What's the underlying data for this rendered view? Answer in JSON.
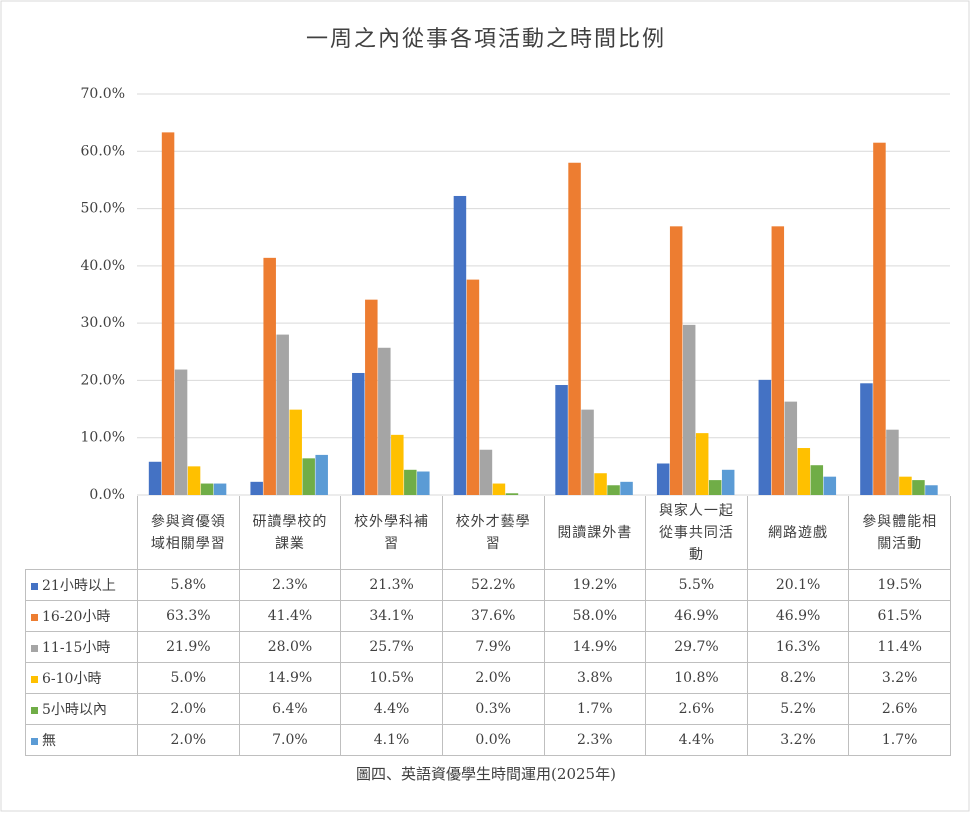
{
  "chart_data": {
    "type": "bar",
    "title": "一周之內從事各項活動之時間比例",
    "caption": "圖四、英語資優學生時間運用(2025年)",
    "categories": [
      "參與資優領域相關學習",
      "研讀學校的課業",
      "校外學科補習",
      "校外才藝學習",
      "閱讀課外書",
      "與家人一起從事共同活動",
      "網路遊戲",
      "參與體能相關活動"
    ],
    "series": [
      {
        "name": "21小時以上",
        "color": "#4472c4",
        "values": [
          5.8,
          2.3,
          21.3,
          52.2,
          19.2,
          5.5,
          20.1,
          19.5
        ],
        "value_labels": [
          "5.8%",
          "2.3%",
          "21.3%",
          "52.2%",
          "19.2%",
          "5.5%",
          "20.1%",
          "19.5%"
        ]
      },
      {
        "name": "16-20小時",
        "color": "#ed7d31",
        "values": [
          63.3,
          41.4,
          34.1,
          37.6,
          58.0,
          46.9,
          46.9,
          61.5
        ],
        "value_labels": [
          "63.3%",
          "41.4%",
          "34.1%",
          "37.6%",
          "58.0%",
          "46.9%",
          "46.9%",
          "61.5%"
        ]
      },
      {
        "name": "11-15小時",
        "color": "#a5a5a5",
        "values": [
          21.9,
          28.0,
          25.7,
          7.9,
          14.9,
          29.7,
          16.3,
          11.4
        ],
        "value_labels": [
          "21.9%",
          "28.0%",
          "25.7%",
          "7.9%",
          "14.9%",
          "29.7%",
          "16.3%",
          "11.4%"
        ]
      },
      {
        "name": "6-10小時",
        "color": "#ffc000",
        "values": [
          5.0,
          14.9,
          10.5,
          2.0,
          3.8,
          10.8,
          8.2,
          3.2
        ],
        "value_labels": [
          "5.0%",
          "14.9%",
          "10.5%",
          "2.0%",
          "3.8%",
          "10.8%",
          "8.2%",
          "3.2%"
        ]
      },
      {
        "name": "5小時以內",
        "color": "#70ad47",
        "values": [
          2.0,
          6.4,
          4.4,
          0.3,
          1.7,
          2.6,
          5.2,
          2.6
        ],
        "value_labels": [
          "2.0%",
          "6.4%",
          "4.4%",
          "0.3%",
          "1.7%",
          "2.6%",
          "5.2%",
          "2.6%"
        ]
      },
      {
        "name": "無",
        "color": "#5b9bd5",
        "values": [
          2.0,
          7.0,
          4.1,
          0.0,
          2.3,
          4.4,
          3.2,
          1.7
        ],
        "value_labels": [
          "2.0%",
          "7.0%",
          "4.1%",
          "0.0%",
          "2.3%",
          "4.4%",
          "3.2%",
          "1.7%"
        ]
      }
    ],
    "ylim": [
      0,
      70
    ],
    "yticks": [
      {
        "value": 0,
        "label": "0.0%"
      },
      {
        "value": 10,
        "label": "10.0%"
      },
      {
        "value": 20,
        "label": "20.0%"
      },
      {
        "value": 30,
        "label": "30.0%"
      },
      {
        "value": 40,
        "label": "40.0%"
      },
      {
        "value": 50,
        "label": "50.0%"
      },
      {
        "value": 60,
        "label": "60.0%"
      },
      {
        "value": 70,
        "label": "70.0%"
      }
    ],
    "grid": true
  }
}
